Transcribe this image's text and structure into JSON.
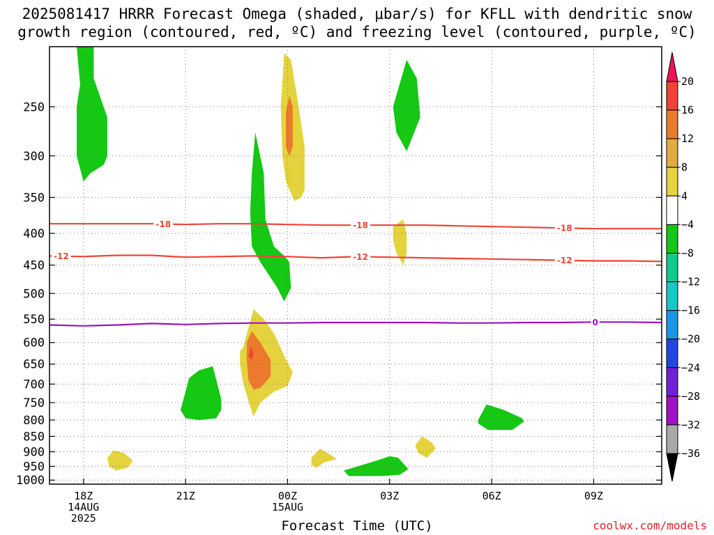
{
  "title_line1": "2025081417 HRRR Forecast Omega (shaded, μbar/s) for KFLL with dendritic snow",
  "title_line2": "growth region (contoured, red, ºC) and freezing level (contoured, purple, ºC)",
  "credit": "coolwx.com/models",
  "chart_data": {
    "type": "contour",
    "xlabel": "Forecast Time (UTC)",
    "x_ticks": [
      {
        "hour": 1,
        "lines": [
          "18Z",
          "14AUG",
          "2025"
        ]
      },
      {
        "hour": 4,
        "lines": [
          "21Z"
        ]
      },
      {
        "hour": 7,
        "lines": [
          "00Z",
          "15AUG"
        ]
      },
      {
        "hour": 10,
        "lines": [
          "03Z"
        ]
      },
      {
        "hour": 13,
        "lines": [
          "06Z"
        ]
      },
      {
        "hour": 16,
        "lines": [
          "09Z"
        ]
      }
    ],
    "x_range_hours": [
      0,
      18
    ],
    "y_ticks": [
      250,
      300,
      350,
      400,
      450,
      500,
      550,
      600,
      650,
      700,
      750,
      800,
      850,
      900,
      950,
      1000
    ],
    "y_range_hPa": [
      200,
      1015
    ],
    "y_scale": "log-pressure",
    "colorbar": {
      "labels": [
        "20",
        "16",
        "12",
        "8",
        "4",
        "−4",
        "−8",
        "−12",
        "−16",
        "−20",
        "−24",
        "−28",
        "−32",
        "−36"
      ],
      "colors": [
        "#ed1555",
        "#ef4336",
        "#ec7a2c",
        "#e3ab3c",
        "#e4d33c",
        "#ffffff",
        "#14c814",
        "#10c890",
        "#18c8c8",
        "#1898e8",
        "#2048e0",
        "#7020d8",
        "#a010c8",
        "#a8a8a8",
        "#000000"
      ],
      "arrow_top_color": "#ed1555",
      "arrow_bottom_color": "#000000"
    },
    "omega_regions": [
      {
        "color": "#14c814",
        "points": [
          [
            0.8,
            200
          ],
          [
            1.3,
            200
          ],
          [
            1.3,
            225
          ],
          [
            1.7,
            260
          ],
          [
            1.7,
            300
          ],
          [
            1.6,
            310
          ],
          [
            1.2,
            320
          ],
          [
            1.0,
            330
          ],
          [
            0.8,
            300
          ],
          [
            0.8,
            250
          ],
          [
            0.9,
            230
          ]
        ]
      },
      {
        "color": "#e4d33c",
        "points": [
          [
            6.8,
            250
          ],
          [
            6.9,
            205
          ],
          [
            7.1,
            210
          ],
          [
            7.3,
            245
          ],
          [
            7.5,
            290
          ],
          [
            7.5,
            340
          ],
          [
            7.4,
            350
          ],
          [
            7.2,
            355
          ],
          [
            6.95,
            330
          ],
          [
            6.85,
            300
          ]
        ]
      },
      {
        "color": "#ec7a2c",
        "points": [
          [
            6.95,
            255
          ],
          [
            7.05,
            240
          ],
          [
            7.15,
            250
          ],
          [
            7.15,
            290
          ],
          [
            7.05,
            300
          ],
          [
            6.95,
            290
          ]
        ]
      },
      {
        "color": "#14c814",
        "points": [
          [
            5.95,
            320
          ],
          [
            6.05,
            275
          ],
          [
            6.3,
            320
          ],
          [
            6.35,
            380
          ],
          [
            6.6,
            420
          ],
          [
            6.9,
            435
          ],
          [
            7.05,
            445
          ],
          [
            7.1,
            490
          ],
          [
            6.9,
            515
          ],
          [
            6.7,
            490
          ],
          [
            6.2,
            445
          ],
          [
            5.95,
            420
          ],
          [
            5.9,
            370
          ]
        ]
      },
      {
        "color": "#14c814",
        "points": [
          [
            10.1,
            250
          ],
          [
            10.5,
            210
          ],
          [
            10.8,
            225
          ],
          [
            10.9,
            260
          ],
          [
            10.5,
            295
          ],
          [
            10.2,
            275
          ]
        ]
      },
      {
        "color": "#e4d33c",
        "points": [
          [
            10.1,
            390
          ],
          [
            10.4,
            380
          ],
          [
            10.5,
            400
          ],
          [
            10.5,
            430
          ],
          [
            10.4,
            450
          ],
          [
            10.2,
            430
          ],
          [
            10.1,
            410
          ]
        ]
      },
      {
        "color": "#e4d33c",
        "points": [
          [
            5.7,
            610
          ],
          [
            5.9,
            555
          ],
          [
            6.0,
            530
          ],
          [
            6.3,
            550
          ],
          [
            6.6,
            580
          ],
          [
            6.9,
            630
          ],
          [
            7.15,
            670
          ],
          [
            7.0,
            705
          ],
          [
            6.6,
            720
          ],
          [
            6.2,
            750
          ],
          [
            6.0,
            790
          ],
          [
            5.9,
            760
          ],
          [
            5.7,
            700
          ],
          [
            5.6,
            650
          ],
          [
            5.6,
            620
          ]
        ]
      },
      {
        "color": "#ec7a2c",
        "points": [
          [
            5.8,
            600
          ],
          [
            5.95,
            575
          ],
          [
            6.2,
            600
          ],
          [
            6.5,
            640
          ],
          [
            6.5,
            680
          ],
          [
            6.2,
            710
          ],
          [
            6.0,
            715
          ],
          [
            5.85,
            690
          ],
          [
            5.8,
            640
          ]
        ]
      },
      {
        "color": "#ef4336",
        "points": [
          [
            5.85,
            630
          ],
          [
            5.93,
            610
          ],
          [
            6.0,
            625
          ],
          [
            5.95,
            640
          ]
        ]
      },
      {
        "color": "#14c814",
        "points": [
          [
            3.9,
            755
          ],
          [
            4.0,
            720
          ],
          [
            4.1,
            685
          ],
          [
            4.4,
            665
          ],
          [
            4.8,
            655
          ],
          [
            5.05,
            740
          ],
          [
            5.05,
            770
          ],
          [
            4.9,
            795
          ],
          [
            4.4,
            800
          ],
          [
            4.0,
            795
          ],
          [
            3.85,
            770
          ]
        ]
      },
      {
        "color": "#14c814",
        "points": [
          [
            12.6,
            800
          ],
          [
            12.85,
            755
          ],
          [
            13.35,
            770
          ],
          [
            13.9,
            795
          ],
          [
            13.95,
            805
          ],
          [
            13.6,
            830
          ],
          [
            12.9,
            830
          ],
          [
            12.6,
            810
          ]
        ]
      },
      {
        "color": "#e4d33c",
        "points": [
          [
            1.7,
            920
          ],
          [
            1.9,
            895
          ],
          [
            2.2,
            905
          ],
          [
            2.45,
            930
          ],
          [
            2.3,
            955
          ],
          [
            1.95,
            965
          ],
          [
            1.75,
            950
          ]
        ]
      },
      {
        "color": "#e4d33c",
        "points": [
          [
            7.7,
            920
          ],
          [
            7.95,
            890
          ],
          [
            8.2,
            905
          ],
          [
            8.45,
            925
          ],
          [
            8.1,
            935
          ],
          [
            7.85,
            955
          ],
          [
            7.7,
            945
          ]
        ]
      },
      {
        "color": "#e4d33c",
        "points": [
          [
            10.75,
            880
          ],
          [
            10.95,
            850
          ],
          [
            11.25,
            870
          ],
          [
            11.35,
            890
          ],
          [
            11.1,
            920
          ],
          [
            10.85,
            905
          ]
        ]
      },
      {
        "color": "#14c814",
        "points": [
          [
            8.65,
            965
          ],
          [
            9.2,
            945
          ],
          [
            9.75,
            925
          ],
          [
            10.0,
            915
          ],
          [
            10.25,
            920
          ],
          [
            10.55,
            960
          ],
          [
            10.3,
            980
          ],
          [
            9.8,
            985
          ],
          [
            8.8,
            985
          ]
        ]
      }
    ],
    "temperature_contours": [
      {
        "label": "-18",
        "color": "#ef4336",
        "labels_at_hours": [
          3.1,
          8.9,
          14.9
        ],
        "points": [
          [
            0,
            386
          ],
          [
            1,
            386
          ],
          [
            2,
            386
          ],
          [
            3,
            386
          ],
          [
            4,
            387
          ],
          [
            5,
            386
          ],
          [
            6,
            386
          ],
          [
            7,
            387
          ],
          [
            8,
            388
          ],
          [
            9,
            388
          ],
          [
            10,
            388
          ],
          [
            11,
            388
          ],
          [
            12,
            389
          ],
          [
            13,
            390
          ],
          [
            14,
            391
          ],
          [
            15,
            392
          ],
          [
            16,
            393
          ],
          [
            17,
            393
          ],
          [
            18,
            393
          ]
        ]
      },
      {
        "label": "-12",
        "color": "#ef4336",
        "labels_at_hours": [
          0.1,
          8.9,
          14.9
        ],
        "points": [
          [
            0,
            435
          ],
          [
            1,
            436
          ],
          [
            2,
            434
          ],
          [
            3,
            434
          ],
          [
            4,
            437
          ],
          [
            5,
            436
          ],
          [
            6,
            435
          ],
          [
            7,
            436
          ],
          [
            8,
            438
          ],
          [
            9,
            436
          ],
          [
            10,
            437
          ],
          [
            11,
            438
          ],
          [
            12,
            439
          ],
          [
            13,
            440
          ],
          [
            14,
            441
          ],
          [
            15,
            442
          ],
          [
            16,
            443
          ],
          [
            17,
            443
          ],
          [
            18,
            444
          ]
        ]
      },
      {
        "label": "0",
        "color": "#9a12c0",
        "labels_at_hours": [
          15.8
        ],
        "points": [
          [
            0,
            562
          ],
          [
            1,
            564
          ],
          [
            2,
            562
          ],
          [
            3,
            559
          ],
          [
            4,
            561
          ],
          [
            5,
            559
          ],
          [
            6,
            558
          ],
          [
            7,
            558
          ],
          [
            8,
            557
          ],
          [
            9,
            557
          ],
          [
            10,
            557
          ],
          [
            11,
            557
          ],
          [
            12,
            558
          ],
          [
            13,
            558
          ],
          [
            14,
            557
          ],
          [
            15,
            557
          ],
          [
            16,
            556
          ],
          [
            17,
            556
          ],
          [
            18,
            557
          ]
        ]
      }
    ],
    "terrain": {
      "color": "#a0522d",
      "top_hPa": 1015
    }
  }
}
